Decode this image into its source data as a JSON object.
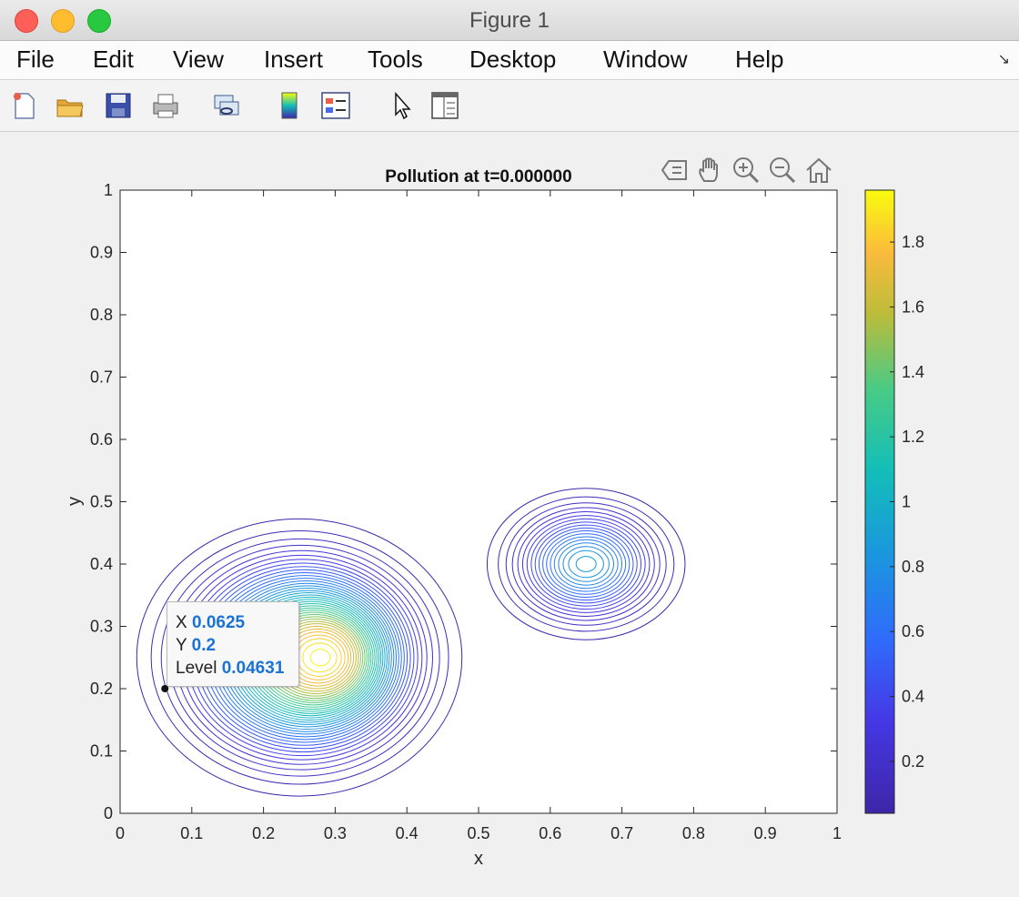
{
  "window": {
    "title": "Figure 1"
  },
  "menu": {
    "items": [
      "File",
      "Edit",
      "View",
      "Insert",
      "Tools",
      "Desktop",
      "Window",
      "Help"
    ]
  },
  "toolbar": {
    "buttons": [
      "new-figure-icon",
      "open-file-icon",
      "save-icon",
      "print-icon",
      "link-icon",
      "colorbar-icon",
      "legend-icon",
      "pointer-icon",
      "property-inspector-icon"
    ]
  },
  "axes_toolbar": {
    "buttons": [
      "export-icon",
      "pan-icon",
      "zoom-in-icon",
      "zoom-out-icon",
      "home-icon"
    ]
  },
  "chart_data": {
    "type": "contour",
    "title": "Pollution at t=0.000000",
    "xlabel": "x",
    "ylabel": "y",
    "xlim": [
      0,
      1
    ],
    "ylim": [
      0,
      1
    ],
    "xticks": [
      "0",
      "0.1",
      "0.2",
      "0.3",
      "0.4",
      "0.5",
      "0.6",
      "0.7",
      "0.8",
      "0.9",
      "1"
    ],
    "yticks": [
      "0",
      "0.1",
      "0.2",
      "0.3",
      "0.4",
      "0.5",
      "0.6",
      "0.7",
      "0.8",
      "0.9",
      "1"
    ],
    "colorbar": {
      "range": [
        0.04,
        1.96
      ],
      "ticks": [
        "0.2",
        "0.4",
        "0.6",
        "0.8",
        "1",
        "1.2",
        "1.4",
        "1.6",
        "1.8"
      ],
      "colormap": "parula"
    },
    "blobs": [
      {
        "center": [
          0.25,
          0.25
        ],
        "peak": 1.96
      },
      {
        "center": [
          0.65,
          0.4
        ],
        "peak": 0.9
      }
    ]
  },
  "datatip": {
    "x_label": "X",
    "x_value": "0.0625",
    "y_label": "Y",
    "y_value": "0.2",
    "level_label": "Level",
    "level_value": "0.04631",
    "point": [
      0.0625,
      0.2
    ]
  }
}
